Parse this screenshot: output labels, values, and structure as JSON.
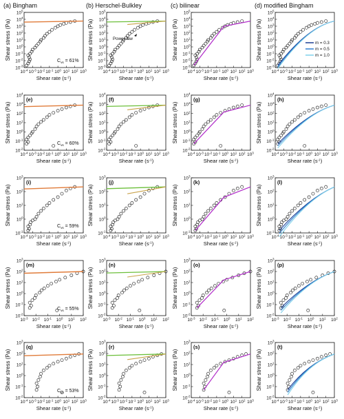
{
  "columns": [
    "(a) Bingham",
    "(b) Herschel-Bulkley",
    "(c) bilinear",
    "(d) modified Bingham"
  ],
  "axis_labels": {
    "x": "Shear rate (s",
    "x_sup": "-1",
    "x_close": ")",
    "y": "Shear stress (Pa)"
  },
  "annotation_power_law": "Power-law",
  "legend_modified_bingham": [
    "m = 0.3",
    "m = 0.5",
    "m = 1.0"
  ],
  "colors": {
    "data_marker": "#111111",
    "bingham": "#e07b39",
    "herschel_bulkley": [
      "#6cbf3a",
      "#c9a24a"
    ],
    "bilinear": "#b12bc9",
    "modified_bingham": [
      "#1c3f94",
      "#2f7fd0",
      "#7fd0ea"
    ]
  },
  "chart_data": [
    {
      "type": "scatter",
      "row_label": "C",
      "row_sub": "vs",
      "row_value": " = 61%",
      "x_scale": "log",
      "y_scale": "log",
      "xlim": [
        0.0001,
        1000
      ],
      "ylim": [
        0.001,
        100000
      ],
      "xtick_exps": [
        -4,
        -3,
        -2,
        -1,
        0,
        1,
        2,
        3
      ],
      "ytick_exps": [
        -3,
        -2,
        -1,
        0,
        1,
        2,
        3,
        4,
        5
      ],
      "panel_labels": [
        "",
        "",
        "",
        ""
      ],
      "data": [
        [
          0.0002,
          0.002
        ],
        [
          0.0003,
          0.004
        ],
        [
          0.0004,
          0.008
        ],
        [
          0.0005,
          0.015
        ],
        [
          0.0004,
          0.03
        ],
        [
          0.0003,
          0.06
        ],
        [
          0.0005,
          0.1
        ],
        [
          0.0008,
          0.2
        ],
        [
          0.001,
          0.4
        ],
        [
          0.002,
          0.8
        ],
        [
          0.003,
          1.5
        ],
        [
          0.005,
          3
        ],
        [
          0.008,
          6
        ],
        [
          0.01,
          10
        ],
        [
          0.02,
          20
        ],
        [
          0.03,
          40
        ],
        [
          0.05,
          80
        ],
        [
          0.1,
          150
        ],
        [
          0.2,
          300
        ],
        [
          0.5,
          600
        ],
        [
          1,
          1000
        ],
        [
          2,
          1500
        ],
        [
          5,
          2200
        ],
        [
          10,
          3000
        ],
        [
          30,
          4000
        ],
        [
          100,
          5500
        ]
      ]
    },
    {
      "type": "scatter",
      "row_label": "C",
      "row_sub": "vs",
      "row_value": " = 60%",
      "x_scale": "log",
      "y_scale": "log",
      "xlim": [
        0.0001,
        1000
      ],
      "ylim": [
        0.01,
        10000
      ],
      "xtick_exps": [
        -4,
        -3,
        -2,
        -1,
        0,
        1,
        2,
        3
      ],
      "ytick_exps": [
        -2,
        -1,
        0,
        1,
        2,
        3,
        4
      ],
      "panel_labels": [
        "(e)",
        "(f)",
        "(g)",
        "(h)"
      ],
      "data": [
        [
          0.0002,
          0.05
        ],
        [
          0.0003,
          0.08
        ],
        [
          0.0002,
          0.15
        ],
        [
          0.0003,
          0.25
        ],
        [
          0.0005,
          0.4
        ],
        [
          0.0008,
          0.7
        ],
        [
          0.001,
          1
        ],
        [
          0.002,
          2
        ],
        [
          0.003,
          4
        ],
        [
          0.005,
          7
        ],
        [
          0.01,
          12
        ],
        [
          0.02,
          20
        ],
        [
          0.05,
          40
        ],
        [
          0.1,
          70
        ],
        [
          0.3,
          120
        ],
        [
          1,
          200
        ],
        [
          3,
          300
        ],
        [
          10,
          450
        ],
        [
          30,
          600
        ],
        [
          100,
          800
        ],
        [
          0.3,
          0.03
        ]
      ]
    },
    {
      "type": "scatter",
      "row_label": "C",
      "row_sub": "vs",
      "row_value": " = 59%",
      "x_scale": "log",
      "y_scale": "log",
      "xlim": [
        0.0001,
        1000
      ],
      "ylim": [
        0.1,
        1000
      ],
      "xtick_exps": [
        -4,
        -3,
        -2,
        -1,
        0,
        1,
        2,
        3
      ],
      "ytick_exps": [
        -1,
        0,
        1,
        2,
        3
      ],
      "panel_labels": [
        "(i)",
        "(j)",
        "(k)",
        "(l)"
      ],
      "data": [
        [
          0.0003,
          0.15
        ],
        [
          0.0004,
          0.2
        ],
        [
          0.0003,
          0.3
        ],
        [
          0.0005,
          0.4
        ],
        [
          0.0006,
          0.6
        ],
        [
          0.001,
          0.8
        ],
        [
          0.002,
          1
        ],
        [
          0.003,
          1.5
        ],
        [
          0.005,
          2.5
        ],
        [
          0.01,
          4
        ],
        [
          0.02,
          6
        ],
        [
          0.05,
          10
        ],
        [
          0.1,
          15
        ],
        [
          0.3,
          25
        ],
        [
          1,
          40
        ],
        [
          3,
          70
        ],
        [
          10,
          120
        ],
        [
          30,
          170
        ],
        [
          100,
          220
        ]
      ]
    },
    {
      "type": "scatter",
      "row_label": "C",
      "row_sub": "vs",
      "row_value": " = 55%",
      "x_scale": "log",
      "y_scale": "log",
      "xlim": [
        0.001,
        100
      ],
      "ylim": [
        0.01,
        1000
      ],
      "xtick_exps": [
        -3,
        -2,
        -1,
        0,
        1,
        2
      ],
      "ytick_exps": [
        -2,
        -1,
        0,
        1,
        2,
        3
      ],
      "panel_labels": [
        "(m)",
        "(n)",
        "(o)",
        "(p)"
      ],
      "data": [
        [
          0.003,
          0.05
        ],
        [
          0.004,
          0.08
        ],
        [
          0.003,
          0.15
        ],
        [
          0.005,
          0.25
        ],
        [
          0.008,
          0.4
        ],
        [
          0.01,
          0.7
        ],
        [
          0.02,
          1.2
        ],
        [
          0.03,
          2
        ],
        [
          0.05,
          3
        ],
        [
          0.1,
          5
        ],
        [
          0.2,
          8
        ],
        [
          0.5,
          12
        ],
        [
          1,
          18
        ],
        [
          3,
          28
        ],
        [
          10,
          45
        ],
        [
          30,
          70
        ],
        [
          100,
          100
        ],
        [
          0.6,
          0.03
        ]
      ]
    },
    {
      "type": "scatter",
      "row_label": "C",
      "row_sub": "vs",
      "row_value": " = 53%",
      "x_scale": "log",
      "y_scale": "log",
      "xlim": [
        0.0001,
        1000
      ],
      "ylim": [
        0.01,
        1000
      ],
      "xtick_exps": [
        -4,
        -3,
        -2,
        -1,
        0,
        1,
        2,
        3
      ],
      "ytick_exps": [
        -2,
        -1,
        0,
        1,
        2,
        3
      ],
      "panel_labels": [
        "(q)",
        "(r)",
        "(s)",
        "(t)"
      ],
      "data": [
        [
          0.003,
          0.05
        ],
        [
          0.004,
          0.1
        ],
        [
          0.003,
          0.2
        ],
        [
          0.005,
          0.4
        ],
        [
          0.008,
          0.8
        ],
        [
          0.01,
          1.5
        ],
        [
          0.02,
          3
        ],
        [
          0.05,
          5
        ],
        [
          0.1,
          8
        ],
        [
          0.3,
          12
        ],
        [
          1,
          18
        ],
        [
          3,
          25
        ],
        [
          10,
          35
        ],
        [
          30,
          50
        ],
        [
          100,
          70
        ],
        [
          300,
          90
        ],
        [
          3,
          0.03
        ]
      ]
    }
  ]
}
